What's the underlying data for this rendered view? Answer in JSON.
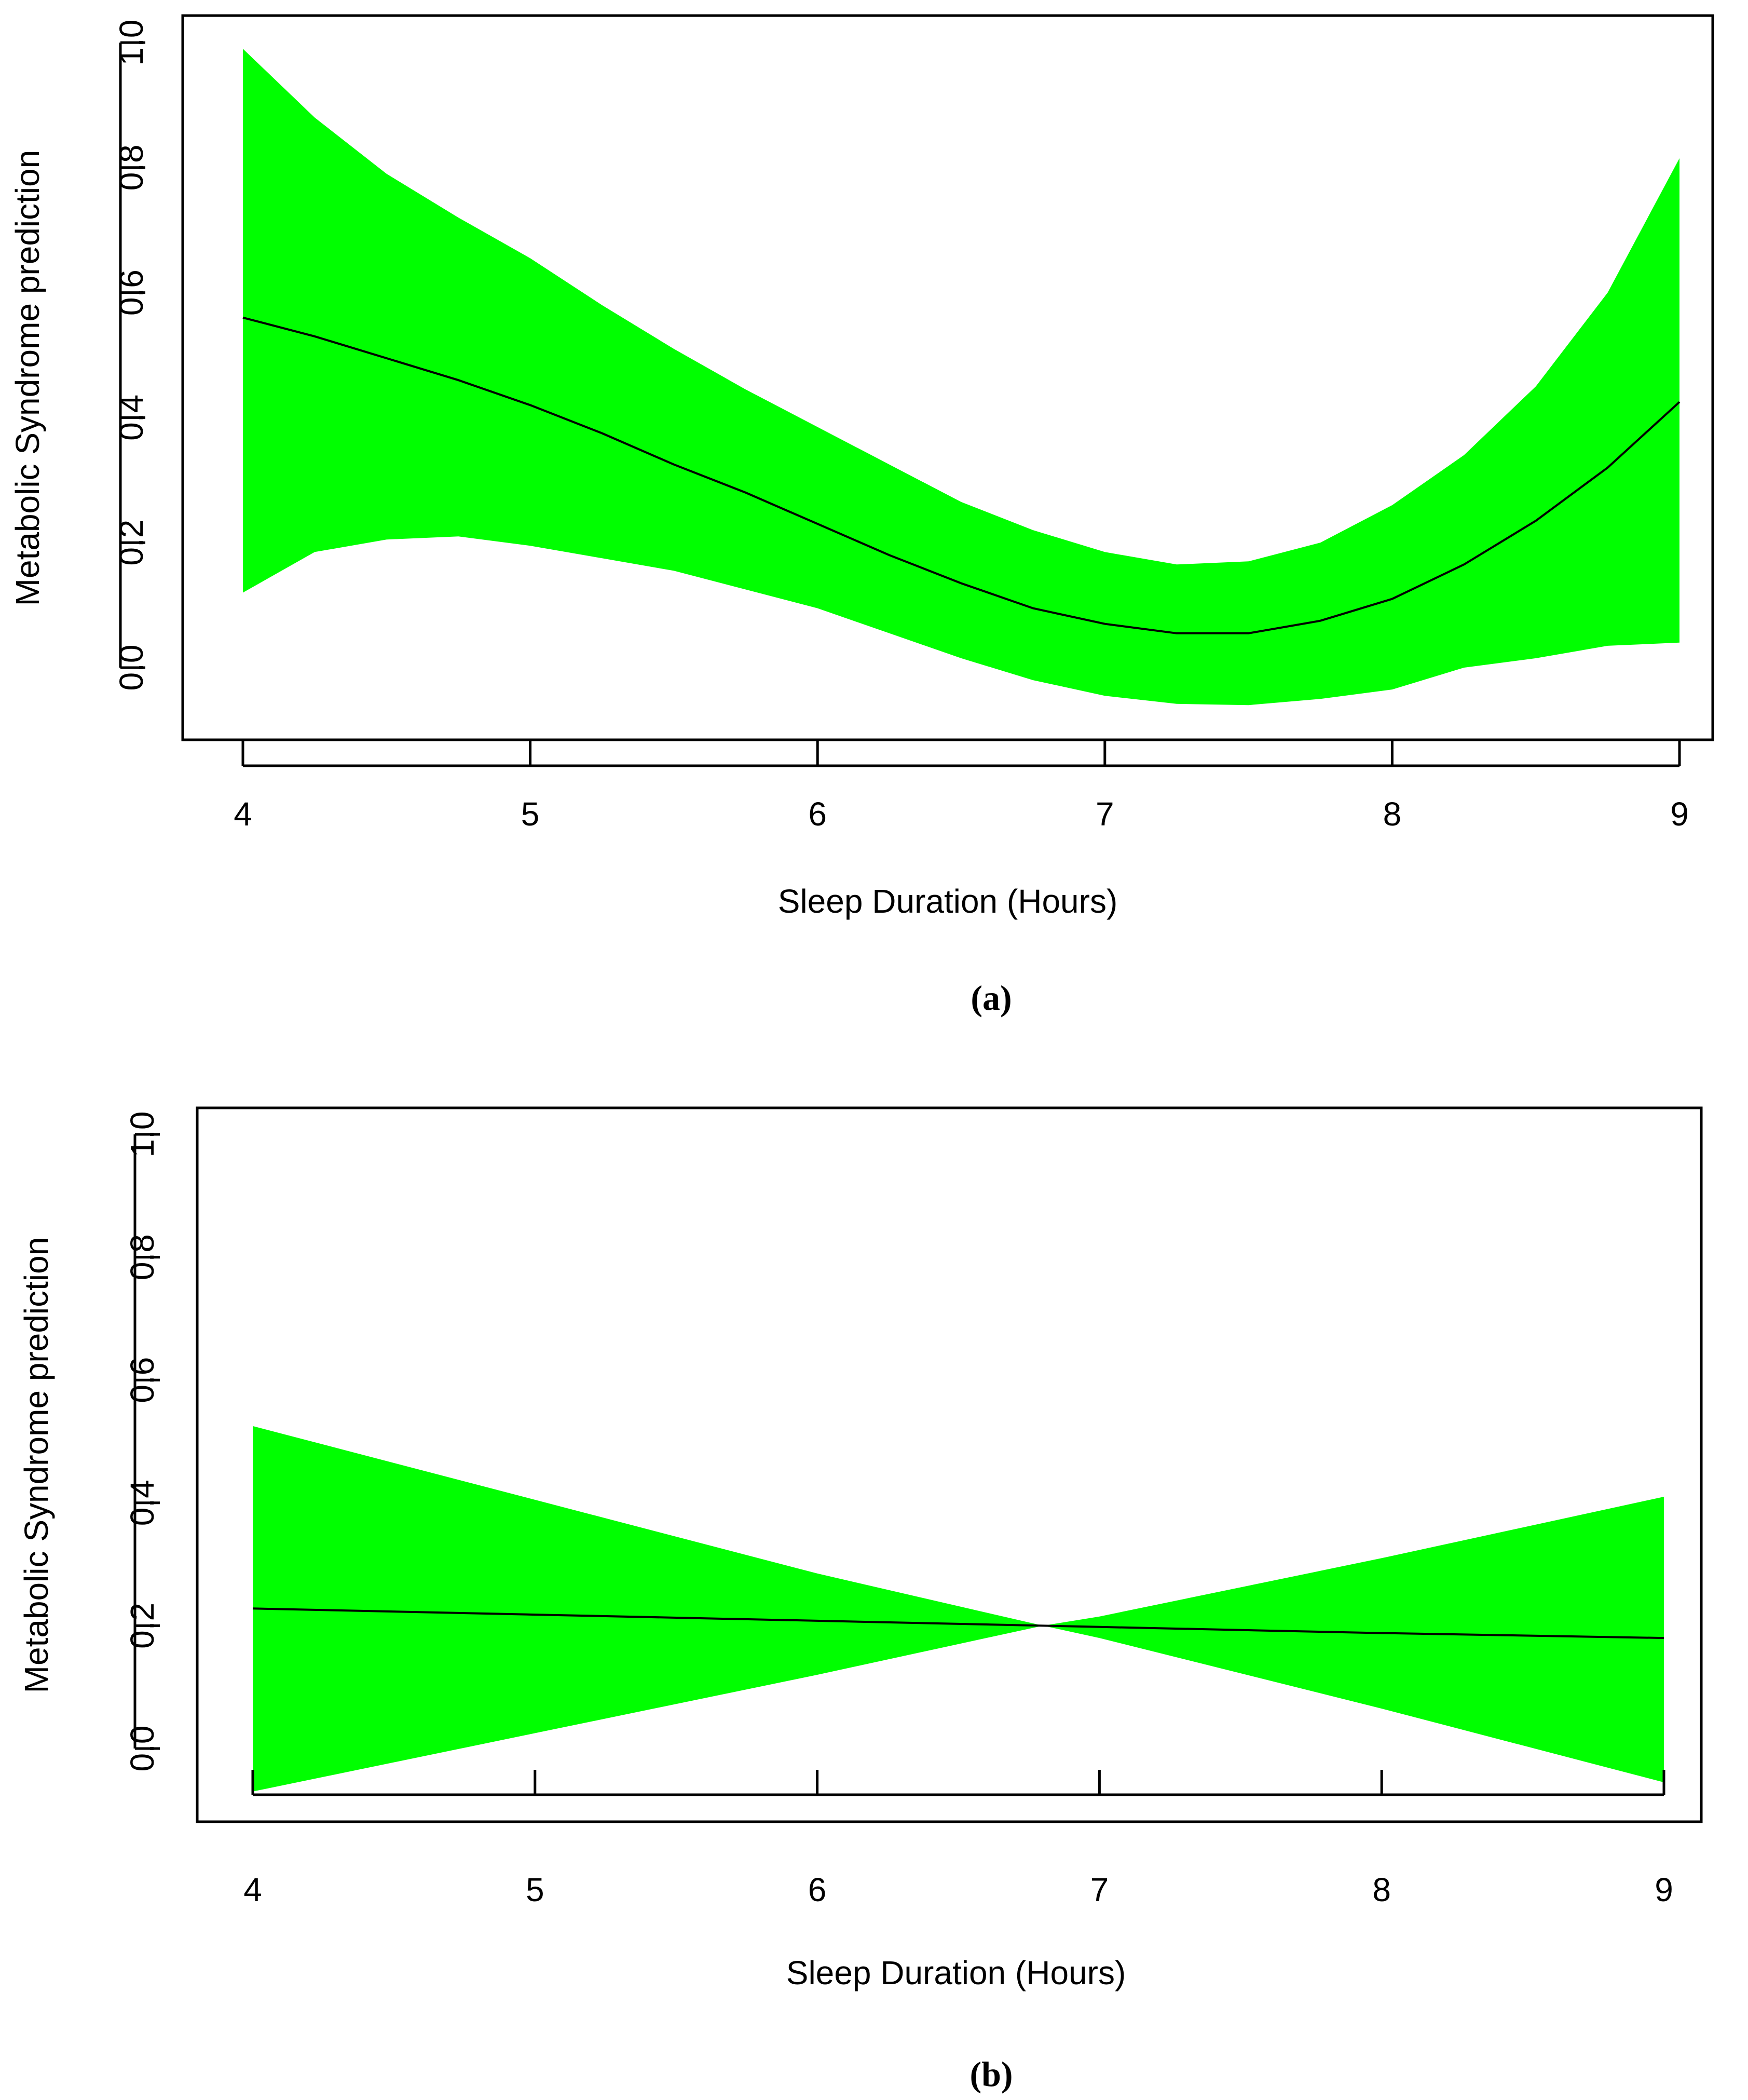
{
  "chart_data": [
    {
      "type": "line",
      "panel_label": "(a)",
      "xlabel": "Sleep Duration (Hours)",
      "ylabel": "Metabolic Syndrome prediction",
      "x_ticks": [
        "4",
        "5",
        "6",
        "7",
        "8",
        "9"
      ],
      "y_ticks": [
        "0.0",
        "0.2",
        "0.4",
        "0.6",
        "0.8",
        "1.0"
      ],
      "xlim": [
        3.8,
        9.05
      ],
      "ylim": [
        -0.12,
        1.05
      ],
      "grid": false,
      "band_color": "#00ff00",
      "line_color": "#000000",
      "x": [
        4.0,
        4.25,
        4.5,
        4.75,
        5.0,
        5.25,
        5.5,
        5.75,
        6.0,
        6.25,
        6.5,
        6.75,
        7.0,
        7.25,
        7.5,
        7.75,
        8.0,
        8.25,
        8.5,
        8.75,
        9.0
      ],
      "fit": [
        0.56,
        0.53,
        0.495,
        0.46,
        0.42,
        0.375,
        0.325,
        0.28,
        0.23,
        0.18,
        0.135,
        0.095,
        0.07,
        0.055,
        0.055,
        0.075,
        0.11,
        0.165,
        0.235,
        0.32,
        0.425
      ],
      "upper": [
        0.99,
        0.88,
        0.79,
        0.72,
        0.655,
        0.58,
        0.51,
        0.445,
        0.385,
        0.325,
        0.265,
        0.22,
        0.185,
        0.165,
        0.17,
        0.2,
        0.26,
        0.34,
        0.45,
        0.6,
        0.815
      ],
      "lower": [
        0.12,
        0.185,
        0.205,
        0.21,
        0.195,
        0.175,
        0.155,
        0.125,
        0.095,
        0.055,
        0.015,
        -0.02,
        -0.045,
        -0.058,
        -0.06,
        -0.05,
        -0.035,
        0.0,
        0.015,
        0.035,
        0.04
      ]
    },
    {
      "type": "line",
      "panel_label": "(b)",
      "xlabel": "Sleep Duration (Hours)",
      "ylabel": "Metabolic Syndrome prediction",
      "x_ticks": [
        "4",
        "5",
        "6",
        "7",
        "8",
        "9"
      ],
      "y_ticks": [
        "0.0",
        "0.2",
        "0.4",
        "0.6",
        "0.8",
        "1.0"
      ],
      "xlim": [
        3.8,
        9.05
      ],
      "ylim": [
        -0.12,
        1.05
      ],
      "grid": false,
      "band_color": "#00ff00",
      "line_color": "#000000",
      "x": [
        4.0,
        5.0,
        6.0,
        6.8,
        7.0,
        8.0,
        9.0
      ],
      "fit": [
        0.228,
        0.218,
        0.208,
        0.2,
        0.198,
        0.188,
        0.18
      ],
      "upper": [
        0.525,
        0.405,
        0.285,
        0.2,
        0.215,
        0.31,
        0.41
      ],
      "lower": [
        -0.07,
        0.025,
        0.12,
        0.2,
        0.18,
        0.065,
        -0.055
      ]
    }
  ]
}
